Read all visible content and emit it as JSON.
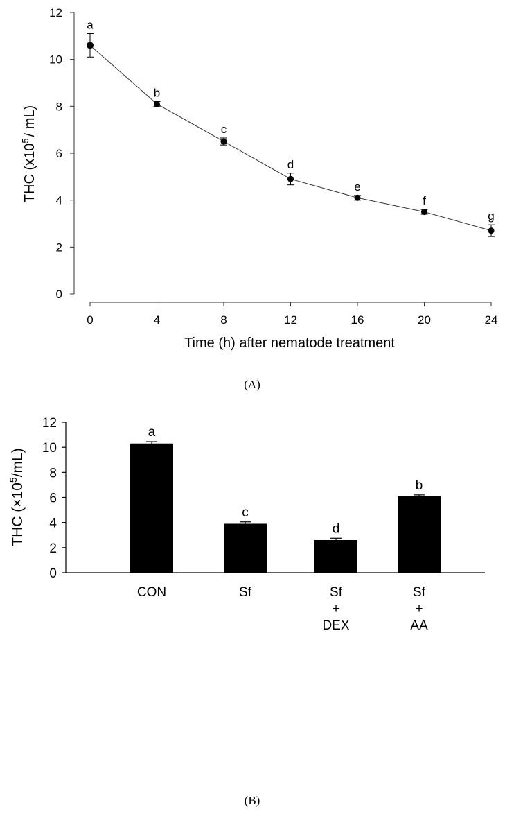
{
  "chart_data": [
    {
      "panel": "(A)",
      "type": "line",
      "xlabel": "Time (h) after nematode treatment",
      "ylabel_main": "THC (x10",
      "ylabel_sup": "5",
      "ylabel_tail": "/ mL)",
      "x": [
        0,
        4,
        8,
        12,
        16,
        20,
        24
      ],
      "y": [
        10.6,
        8.1,
        6.5,
        4.9,
        4.1,
        3.5,
        2.7
      ],
      "errors": [
        0.5,
        0.1,
        0.15,
        0.25,
        0.1,
        0.1,
        0.25
      ],
      "letters": [
        "a",
        "b",
        "c",
        "d",
        "e",
        "f",
        "g"
      ],
      "xticks": [
        "0",
        "4",
        "8",
        "12",
        "16",
        "20",
        "24"
      ],
      "yticks": [
        "0",
        "2",
        "4",
        "6",
        "8",
        "10",
        "12"
      ],
      "xlim": [
        0,
        24
      ],
      "ylim": [
        0,
        12
      ],
      "grid": false
    },
    {
      "panel": "(B)",
      "type": "bar",
      "ylabel_main": "THC (×10",
      "ylabel_sup": "5",
      "ylabel_tail": "/mL)",
      "categories": [
        {
          "lines": [
            "CON"
          ]
        },
        {
          "lines": [
            "Sf"
          ]
        },
        {
          "lines": [
            "Sf",
            "+",
            "DEX"
          ]
        },
        {
          "lines": [
            "Sf",
            "+",
            "AA"
          ]
        }
      ],
      "values": [
        10.3,
        3.9,
        2.6,
        6.1
      ],
      "errors": [
        0.15,
        0.15,
        0.15,
        0.1
      ],
      "letters": [
        "a",
        "c",
        "d",
        "b"
      ],
      "yticks": [
        "0",
        "2",
        "4",
        "6",
        "8",
        "10",
        "12"
      ],
      "ylim": [
        0,
        12
      ],
      "grid": false,
      "bar_color": "#000000"
    }
  ]
}
